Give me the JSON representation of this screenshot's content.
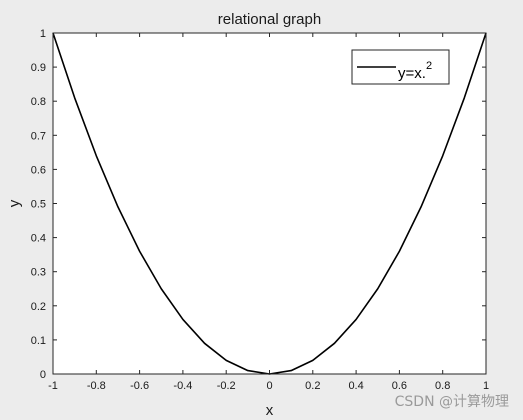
{
  "chart_data": {
    "type": "line",
    "title": "relational graph",
    "xlabel": "x",
    "ylabel": "y",
    "xlim": [
      -1,
      1
    ],
    "ylim": [
      0,
      1
    ],
    "xticks": [
      -1,
      -0.8,
      -0.6,
      -0.4,
      -0.2,
      0,
      0.2,
      0.4,
      0.6,
      0.8,
      1
    ],
    "xtick_labels": [
      "-1",
      "-0.8",
      "-0.6",
      "-0.4",
      "-0.2",
      "0",
      "0.2",
      "0.4",
      "0.6",
      "0.8",
      "1"
    ],
    "yticks": [
      0,
      0.1,
      0.2,
      0.3,
      0.4,
      0.5,
      0.6,
      0.7,
      0.8,
      0.9,
      1
    ],
    "ytick_labels": [
      "0",
      "0.1",
      "0.2",
      "0.3",
      "0.4",
      "0.5",
      "0.6",
      "0.7",
      "0.8",
      "0.9",
      "1"
    ],
    "grid": false,
    "box": true,
    "legend_position": "top-right",
    "legend": {
      "text": "y=x.",
      "superscript": "2"
    },
    "series": [
      {
        "color": "#000000",
        "x": [
          -1,
          -0.9,
          -0.8,
          -0.7,
          -0.6,
          -0.5,
          -0.4,
          -0.3,
          -0.2,
          -0.1,
          0,
          0.1,
          0.2,
          0.3,
          0.4,
          0.5,
          0.6,
          0.7,
          0.8,
          0.9,
          1
        ],
        "y": [
          1,
          0.81,
          0.64,
          0.49,
          0.36,
          0.25,
          0.16,
          0.09,
          0.04,
          0.01,
          0,
          0.01,
          0.04,
          0.09,
          0.16,
          0.25,
          0.36,
          0.49,
          0.64,
          0.81,
          1
        ]
      }
    ]
  },
  "watermark": "CSDN @计算物理"
}
